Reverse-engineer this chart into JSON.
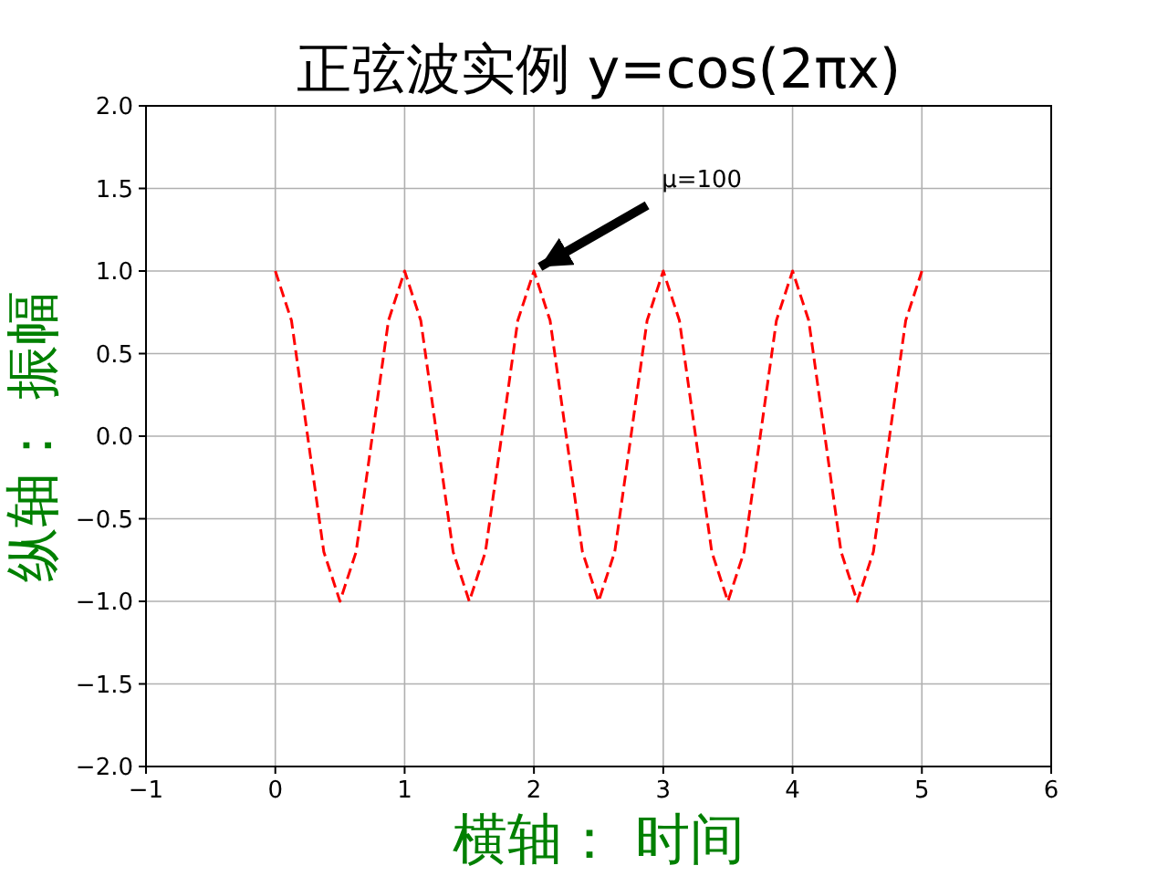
{
  "chart_data": {
    "type": "line",
    "title": "正弦波实例 y=cos(2πx)",
    "xlabel": "横轴：  时间",
    "ylabel": "纵轴：  振幅",
    "x": [
      0,
      0.125,
      0.25,
      0.375,
      0.5,
      0.625,
      0.75,
      0.875,
      1,
      1.125,
      1.25,
      1.375,
      1.5,
      1.625,
      1.75,
      1.875,
      2,
      2.125,
      2.25,
      2.375,
      2.5,
      2.625,
      2.75,
      2.875,
      3,
      3.125,
      3.25,
      3.375,
      3.5,
      3.625,
      3.75,
      3.875,
      4,
      4.125,
      4.25,
      4.375,
      4.5,
      4.625,
      4.75,
      4.875,
      5
    ],
    "series": [
      {
        "color": "#ff0000",
        "line_style": "dashed",
        "values": [
          1,
          0.7,
          0,
          -0.7,
          -1,
          -0.7,
          0,
          0.7,
          1,
          0.7,
          0,
          -0.7,
          -1,
          -0.7,
          0,
          0.7,
          1,
          0.7,
          0,
          -0.7,
          -1,
          -0.7,
          0,
          0.7,
          1,
          0.7,
          0,
          -0.7,
          -1,
          -0.7,
          0,
          0.7,
          1,
          0.7,
          0,
          -0.7,
          -1,
          -0.7,
          0,
          0.7,
          1
        ]
      }
    ],
    "xlim": [
      -1,
      6
    ],
    "xticks": [
      {
        "value": -1,
        "label": "−1"
      },
      0,
      1,
      2,
      3,
      4,
      5,
      6
    ],
    "ylim": [
      -2,
      2
    ],
    "yticks": [
      {
        "value": -2,
        "label": "−2.0"
      },
      {
        "value": -1.5,
        "label": "−1.5"
      },
      {
        "value": -1,
        "label": "−1.0"
      },
      {
        "value": -0.5,
        "label": "−0.5"
      },
      {
        "value": 0,
        "label": "0.0"
      },
      {
        "value": 0.5,
        "label": "0.5"
      },
      {
        "value": 1,
        "label": "1.0"
      },
      {
        "value": 1.5,
        "label": "1.5"
      },
      {
        "value": 2,
        "label": "2.0"
      }
    ],
    "grid": true,
    "marker": "none",
    "annotations": [
      {
        "text": "μ=100",
        "x": 2,
        "y": 1
      }
    ]
  }
}
